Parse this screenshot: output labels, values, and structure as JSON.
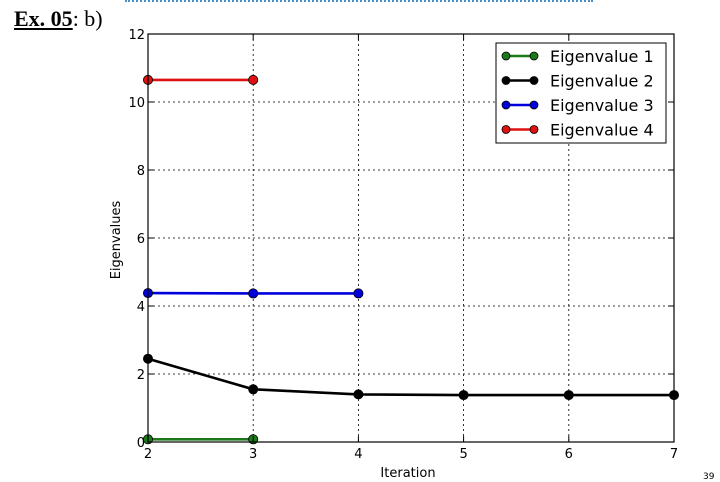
{
  "slide": {
    "heading_label": "Ex. 05",
    "heading_suffix": ": b)",
    "page_number": "39"
  },
  "chart_data": {
    "type": "line",
    "xlabel": "Iteration",
    "ylabel": "Eigenvalues",
    "xlim": [
      2,
      7
    ],
    "ylim": [
      0,
      12
    ],
    "xticks": [
      2,
      3,
      4,
      5,
      6,
      7
    ],
    "yticks": [
      0,
      2,
      4,
      6,
      8,
      10,
      12
    ],
    "grid": true,
    "legend_position": "top-right",
    "series": [
      {
        "name": "Eigenvalue 1",
        "color": "#1a7a1a",
        "x": [
          2,
          3
        ],
        "y": [
          0.08,
          0.08
        ]
      },
      {
        "name": "Eigenvalue 2",
        "color": "#000000",
        "x": [
          2,
          3,
          4,
          5,
          6,
          7
        ],
        "y": [
          2.45,
          1.55,
          1.4,
          1.38,
          1.38,
          1.38
        ]
      },
      {
        "name": "Eigenvalue 3",
        "color": "#0000dd",
        "x": [
          2,
          3,
          4
        ],
        "y": [
          4.38,
          4.37,
          4.37
        ]
      },
      {
        "name": "Eigenvalue 4",
        "color": "#dd1111",
        "x": [
          2,
          3
        ],
        "y": [
          10.65,
          10.65
        ]
      }
    ]
  }
}
